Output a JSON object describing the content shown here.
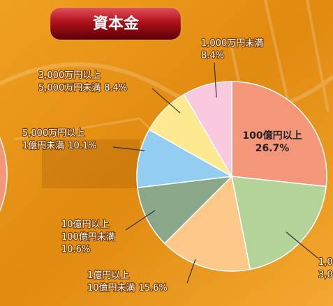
{
  "chart_data": {
    "type": "pie",
    "title": "資本金",
    "categories": [
      [
        "100億円以上"
      ],
      [
        "1,0",
        "3,0"
      ],
      [
        "1億円以上",
        "10億円未満"
      ],
      [
        "10億円以上",
        "100億円未満"
      ],
      [
        "5,000万円以上",
        "1億円未満"
      ],
      [
        "3,000万円以上",
        "5,000万円未満"
      ],
      [
        "1,000万円未満"
      ]
    ],
    "values": [
      26.7,
      20.2,
      15.6,
      10.6,
      10.1,
      8.4,
      8.4
    ],
    "value_labels": [
      "26.7%",
      null,
      "15.6%",
      "10.6%",
      "10.1%",
      "8.4%",
      "8.4%"
    ],
    "colors": [
      "#f4967a",
      "#b4d399",
      "#fdc98a",
      "#8aa78a",
      "#93cdef",
      "#fde990",
      "#f9c9de"
    ]
  }
}
